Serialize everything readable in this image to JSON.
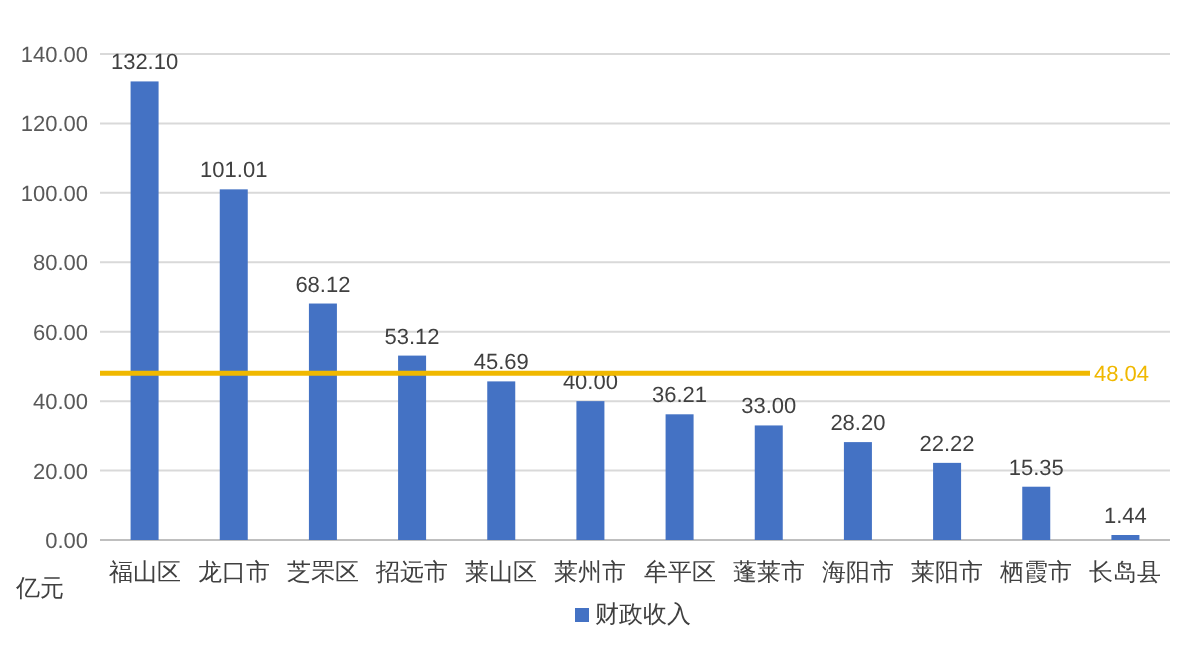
{
  "chart_data": {
    "type": "bar",
    "ylabel": "亿元",
    "categories": [
      "福山区",
      "龙口市",
      "芝罘区",
      "招远市",
      "莱山区",
      "莱州市",
      "牟平区",
      "蓬莱市",
      "海阳市",
      "莱阳市",
      "栖霞市",
      "长岛县"
    ],
    "series": [
      {
        "name": "财政收入",
        "color": "#4472c4",
        "values": [
          132.1,
          101.01,
          68.12,
          53.12,
          45.69,
          40.0,
          36.21,
          33.0,
          28.2,
          22.22,
          15.35,
          1.44
        ]
      }
    ],
    "value_labels": [
      "132.10",
      "101.01",
      "68.12",
      "53.12",
      "45.69",
      "40.00",
      "36.21",
      "33.00",
      "28.20",
      "22.22",
      "15.35",
      "1.44"
    ],
    "ylim": [
      0,
      140
    ],
    "yticks": [
      {
        "value": 0,
        "label": "0.00"
      },
      {
        "value": 20,
        "label": "20.00"
      },
      {
        "value": 40,
        "label": "40.00"
      },
      {
        "value": 60,
        "label": "60.00"
      },
      {
        "value": 80,
        "label": "80.00"
      },
      {
        "value": 100,
        "label": "100.00"
      },
      {
        "value": 120,
        "label": "120.00"
      },
      {
        "value": 140,
        "label": "140.00"
      }
    ],
    "ref_lines": [
      {
        "axis": "y",
        "value": 48.04,
        "label": "48.04",
        "color": "#f0b800"
      }
    ],
    "grid": "y",
    "legend": "bottom"
  }
}
